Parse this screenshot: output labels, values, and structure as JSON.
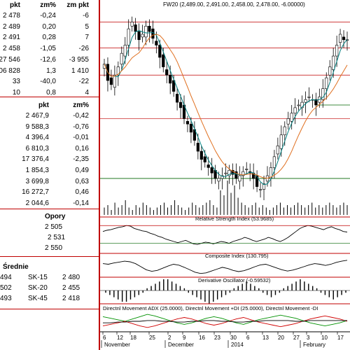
{
  "quotes_table": {
    "headers": [
      "pkt",
      "zm%",
      "zm pkt"
    ],
    "rows": [
      [
        "2 478",
        "-0,24",
        "-6"
      ],
      [
        "2 489",
        "0,20",
        "5"
      ],
      [
        "2 491",
        "0,28",
        "7"
      ],
      [
        "2 458",
        "-1,05",
        "-26"
      ],
      [
        "27 546",
        "-12,6",
        "-3 955"
      ],
      [
        "06 828",
        "1,3",
        "1 410"
      ],
      [
        "33",
        "-40,0",
        "-22"
      ],
      [
        "10",
        "0,8",
        "4"
      ]
    ]
  },
  "index_table": {
    "headers": [
      "pkt",
      "zm%"
    ],
    "rows": [
      [
        "2 467,9",
        "-0,42"
      ],
      [
        "9 588,3",
        "-0,76"
      ],
      [
        "4 396,4",
        "-0,01"
      ],
      [
        "6 810,3",
        "0,16"
      ],
      [
        "17 376,4",
        "-2,35"
      ],
      [
        "1 854,3",
        "0,49"
      ],
      [
        "3 699,8",
        "0,63"
      ],
      [
        "16 272,7",
        "0,46"
      ],
      [
        "2 044,6",
        "-0,14"
      ]
    ]
  },
  "support": {
    "title": "Opory",
    "values": [
      "2 505",
      "2 531",
      "2 550"
    ]
  },
  "averages": {
    "title": "Średnie",
    "rows": [
      [
        "494",
        "SK-15",
        "2 480"
      ],
      [
        "502",
        "SK-20",
        "2 455"
      ],
      [
        "493",
        "SK-45",
        "2 418"
      ]
    ]
  },
  "chart": {
    "title": "FW20 (2,489.00, 2,491.00, 2,458.00, 2,478.00, -6.00000)",
    "rsi_label": "Relative Strength Index (53.9685)",
    "composite_label": "Composite Index (130.795)",
    "derivative_label": "Derivative Oscillator (-0.59532)",
    "dmi_label": "Directnl Movement ADX (25.0000), Directnl Movement +DI (25.0000), Directnl Movement -DI",
    "x_ticks": [
      "6",
      "12",
      "18",
      "25",
      "2",
      "9",
      "16",
      "23",
      "30",
      "6",
      "13",
      "20",
      "27",
      "3",
      "10",
      "17"
    ],
    "month_labels": [
      "November",
      "December",
      "2014",
      "February"
    ],
    "colors": {
      "separator": "#c00000",
      "ma_short": "#008080",
      "ma_long": "#e07020",
      "support_line": "#006400",
      "dmi_plus": "#009000",
      "dmi_minus": "#d00000"
    }
  },
  "chart_data": [
    {
      "type": "candlestick",
      "series": [
        {
          "name": "FW20",
          "values": [
            2460,
            2448,
            2445,
            2452,
            2458,
            2468,
            2474,
            2486,
            2491,
            2484,
            2478,
            2482,
            2488,
            2484,
            2479,
            2474,
            2465,
            2458,
            2452,
            2446,
            2440,
            2432,
            2428,
            2420,
            2416,
            2410,
            2404,
            2396,
            2390,
            2388,
            2384,
            2380,
            2376,
            2376,
            2378,
            2380,
            2382,
            2379,
            2376,
            2378,
            2381,
            2383,
            2380,
            2376,
            2370,
            2368,
            2372,
            2378,
            2384,
            2392,
            2400,
            2408,
            2414,
            2420,
            2424,
            2428,
            2430,
            2432,
            2434,
            2436,
            2434,
            2430,
            2436,
            2442,
            2450,
            2458,
            2466,
            2474,
            2482,
            2478,
            2478
          ]
        }
      ]
    },
    {
      "type": "bar",
      "title": "",
      "values": [
        3,
        4,
        2,
        5,
        3,
        4,
        6,
        3,
        2,
        4,
        3,
        5,
        4,
        3,
        2,
        3,
        4,
        5,
        3,
        4,
        6,
        4,
        3,
        2,
        3,
        5,
        4,
        3,
        4,
        5,
        6,
        4,
        3,
        10,
        8,
        14,
        9,
        12,
        7,
        5,
        4,
        3,
        4,
        5,
        3,
        4,
        3,
        2,
        3,
        4,
        5,
        3,
        4,
        3,
        4,
        5,
        4,
        3,
        4,
        5,
        3,
        4,
        3,
        4,
        5,
        4,
        3,
        4,
        5,
        4
      ]
    },
    {
      "type": "line",
      "title": "Relative Strength Index (53.9685)",
      "values": [
        55,
        57,
        58,
        60,
        62,
        63,
        65,
        64,
        60,
        58,
        56,
        55,
        52,
        50,
        47,
        45,
        42,
        40,
        38,
        36,
        38,
        40,
        37,
        34,
        33,
        35,
        37,
        36,
        34,
        36,
        38,
        37,
        35,
        38,
        40,
        42,
        45,
        43,
        40,
        38,
        40,
        42,
        45,
        43,
        40,
        38,
        41,
        45,
        50,
        55,
        60,
        63,
        65,
        64,
        62,
        60,
        58,
        61,
        63,
        60,
        58,
        55,
        54
      ]
    },
    {
      "type": "line",
      "title": "Composite Index (130.795)",
      "values": [
        120,
        118,
        122,
        125,
        128,
        126,
        120,
        110,
        100,
        95,
        98,
        105,
        112,
        118,
        115,
        108,
        100,
        92,
        88,
        90,
        96,
        102,
        108,
        104,
        98,
        94,
        97,
        103,
        110,
        116,
        118,
        112,
        106,
        100,
        96,
        99,
        104,
        110,
        116,
        120,
        118,
        114,
        118,
        124,
        128,
        131
      ]
    },
    {
      "type": "bar",
      "title": "Derivative Oscillator (-0.59532)",
      "values": [
        -1,
        -2,
        -3,
        -4,
        -5,
        -5,
        -4,
        -3,
        -2,
        -1,
        1,
        2,
        3,
        4,
        5,
        5,
        4,
        3,
        2,
        1,
        -1,
        -2,
        -3,
        -4,
        -5,
        -6,
        -5,
        -4,
        -3,
        -2,
        -1,
        1,
        2,
        3,
        4,
        3,
        2,
        1,
        -1,
        -2,
        -3,
        -2,
        -1,
        1,
        2,
        3,
        4,
        5,
        4,
        3,
        2,
        1,
        -1,
        -2,
        -3,
        -4,
        -3,
        -2,
        -1
      ]
    },
    {
      "type": "line",
      "title": "Directnl Movement ADX (25.0000), Directnl Movement +DI (25.0000), Directnl Movement -DI",
      "series": [
        {
          "name": "Directnl Movement +DI",
          "values": [
            30,
            28,
            26,
            24,
            27,
            30,
            33,
            31,
            28,
            25,
            22,
            20,
            22,
            25,
            28,
            30,
            28,
            25,
            22,
            20,
            23,
            26,
            28,
            30,
            32,
            30,
            28,
            25,
            22,
            20,
            18,
            20,
            22,
            25
          ]
        },
        {
          "name": "Directnl Movement -DI",
          "values": [
            18,
            20,
            22,
            24,
            21,
            18,
            16,
            18,
            21,
            24,
            27,
            29,
            27,
            24,
            21,
            19,
            21,
            24,
            27,
            29,
            26,
            23,
            21,
            19,
            17,
            19,
            21,
            24,
            27,
            29,
            31,
            29,
            27,
            24
          ]
        },
        {
          "name": "Directnl Movement ADX",
          "values": [
            22,
            22,
            23,
            23,
            24,
            24,
            25,
            25,
            24,
            24,
            23,
            23,
            24,
            24,
            25,
            25,
            24,
            24,
            23,
            23,
            24,
            24,
            25,
            25,
            25,
            25,
            24,
            24,
            25,
            25,
            25,
            25,
            25,
            25
          ]
        }
      ]
    }
  ]
}
